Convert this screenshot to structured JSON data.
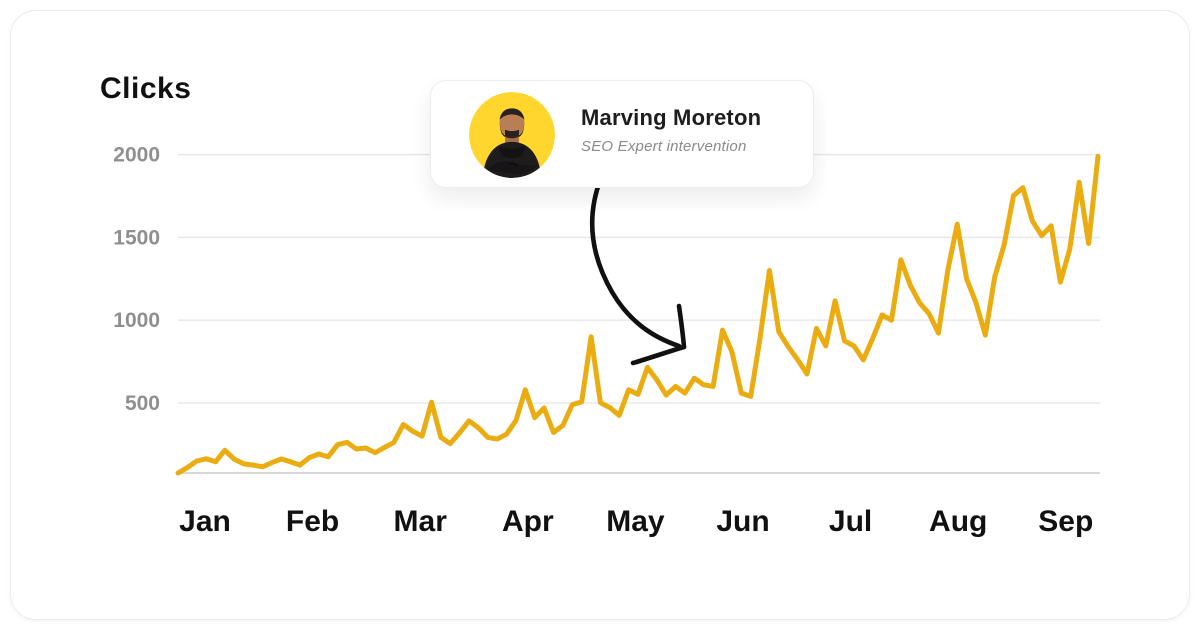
{
  "page": {
    "title": "Clicks"
  },
  "tooltip_card": {
    "name": "Marving Moreton",
    "subtitle": "SEO Expert intervention"
  },
  "colors": {
    "line": "#EAAC10",
    "avatar_bg": "#FFD62E",
    "avatar_skin": "#B97E56",
    "avatar_hoodie": "#1E1C1C",
    "gridline": "#E9E9E9",
    "axis_line": "#D8D8D8",
    "y_tick_label": "#8F8F8F",
    "x_tick_label": "#111111",
    "arrow": "#111111",
    "card_border": "#EDEDED"
  },
  "chart_data": {
    "type": "line",
    "title": "Clicks",
    "xlabel": "",
    "ylabel": "Clicks",
    "x_tick_labels": [
      "Jan",
      "Feb",
      "Mar",
      "Apr",
      "May",
      "Jun",
      "Jul",
      "Aug",
      "Sep"
    ],
    "y_tick_labels": [
      "2000",
      "1500",
      "1000",
      "500"
    ],
    "y_tick_values": [
      2000,
      1500,
      1000,
      500
    ],
    "ylim": [
      0,
      2100
    ],
    "grid": "horizontal-only",
    "legend": "none",
    "series": [
      {
        "name": "Clicks",
        "color": "#EAAC10",
        "values": [
          77,
          110,
          150,
          163,
          145,
          215,
          160,
          132,
          125,
          115,
          140,
          162,
          145,
          125,
          170,
          192,
          175,
          248,
          262,
          222,
          228,
          200,
          232,
          262,
          370,
          330,
          300,
          505,
          292,
          255,
          320,
          392,
          350,
          292,
          282,
          312,
          395,
          580,
          412,
          470,
          322,
          365,
          490,
          508,
          900,
          502,
          472,
          425,
          580,
          552,
          715,
          640,
          548,
          600,
          560,
          650,
          610,
          600,
          940,
          810,
          560,
          540,
          890,
          1300,
          930,
          840,
          762,
          675,
          950,
          845,
          1117,
          875,
          845,
          760,
          890,
          1032,
          1000,
          1364,
          1212,
          1105,
          1040,
          922,
          1302,
          1580,
          1250,
          1105,
          910,
          1260,
          1455,
          1752,
          1800,
          1600,
          1510,
          1570,
          1230,
          1430,
          1833,
          1463,
          1990
        ]
      }
    ],
    "annotations": [
      {
        "type": "callout-with-arrow",
        "text": "Marving Moreton",
        "subtext": "SEO Expert intervention",
        "arrow_points_to": "line around mid-May (~650 clicks)"
      }
    ]
  }
}
